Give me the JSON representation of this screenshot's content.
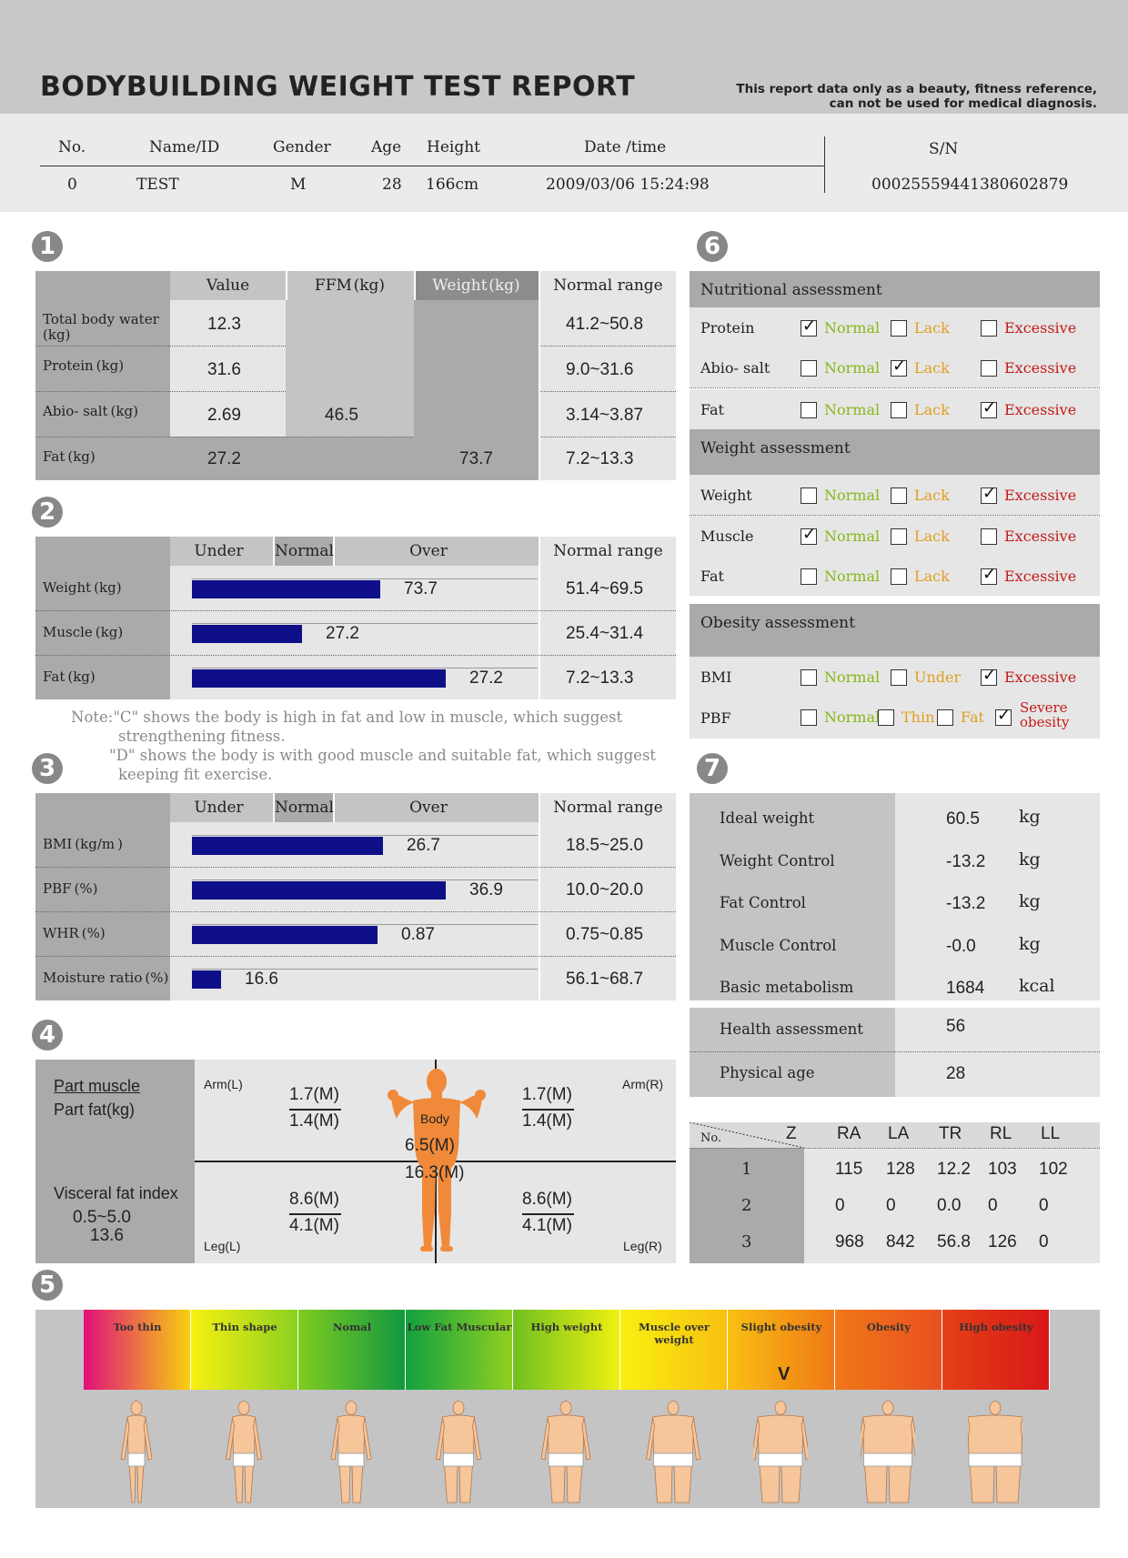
{
  "header": {
    "title": "BODYBUILDING WEIGHT TEST REPORT",
    "disclaimer_line1": "This report data only as a beauty, fitness reference,",
    "disclaimer_line2": "can not be used for medical diagnosis."
  },
  "info": {
    "labels": {
      "no": "No.",
      "name": "Name/ID",
      "gender": "Gender",
      "age": "Age",
      "height": "Height",
      "date": "Date /time",
      "sn": "S/N"
    },
    "values": {
      "no": "0",
      "name": "TEST",
      "gender": "M",
      "age": "28",
      "height": "166cm",
      "date": "2009/03/06 15:24:98",
      "sn": "00025559441380602879"
    }
  },
  "sections": {
    "s1": "1",
    "s2": "2",
    "s3": "3",
    "s4": "4",
    "s5": "5",
    "s6": "6",
    "s7": "7"
  },
  "s1": {
    "headers": {
      "value": "Value",
      "ffm": "FFM (kg)",
      "weight": "Weight (kg)",
      "range": "Normal range"
    },
    "rows": [
      {
        "label": "Total body water\n(kg)",
        "value": "12.3",
        "range": "41.2~50.8"
      },
      {
        "label": "Protein (kg)",
        "value": "31.6",
        "range": "9.0~31.6"
      },
      {
        "label": "Abio- salt (kg)",
        "value": "2.69",
        "range": "3.14~3.87"
      },
      {
        "label": "Fat (kg)",
        "value": "27.2",
        "range": "7.2~13.3"
      }
    ],
    "ffm": "46.5",
    "weight": "73.7"
  },
  "s2": {
    "headers": {
      "under": "Under",
      "normal": "Normal",
      "over": "Over",
      "range": "Normal range"
    },
    "rows": [
      {
        "label": "Weight (kg)",
        "value": "73.7",
        "fill": 0.72,
        "range": "51.4~69.5"
      },
      {
        "label": "Muscle (kg)",
        "value": "27.2",
        "fill": 0.42,
        "range": "25.4~31.4"
      },
      {
        "label": "Fat (kg)",
        "value": "27.2",
        "fill": 0.97,
        "range": "7.2~13.3"
      }
    ]
  },
  "note": {
    "l1": "Note:\"C\" shows the body is high in fat and low in muscle,  which suggest",
    "l2": "strengthening fitness.",
    "l3": "\"D\" shows the body is with good muscle and suitable fat,  which suggest",
    "l4": "keeping fit exercise."
  },
  "s3": {
    "headers": {
      "under": "Under",
      "normal": "Normal",
      "over": "Over",
      "range": "Normal range"
    },
    "rows": [
      {
        "label": "BMI (kg/m )",
        "value": "26.7",
        "fill": 0.73,
        "range": "18.5~25.0"
      },
      {
        "label": "PBF (%)",
        "value": "36.9",
        "fill": 0.97,
        "range": "10.0~20.0"
      },
      {
        "label": "WHR (%)",
        "value": "0.87",
        "fill": 0.71,
        "range": "0.75~0.85"
      },
      {
        "label": "Moisture ratio (%)",
        "value": "16.6",
        "fill": 0.11,
        "range": "56.1~68.7"
      }
    ]
  },
  "s4": {
    "part_muscle": "Part muscle",
    "part_fat": "Part fat(kg)",
    "visceral": "Visceral fat index",
    "visceral_range": "0.5~5.0",
    "visceral_value": "13.6",
    "arm_l": "Arm(L)",
    "arm_r": "Arm(R)",
    "leg_l": "Leg(L)",
    "leg_r": "Leg(R)",
    "body": "Body",
    "arm_l_m": "1.7(M)",
    "arm_l_f": "1.4(M)",
    "arm_r_m": "1.7(M)",
    "arm_r_f": "1.4(M)",
    "body_m": "6.5(M)",
    "body_f": "16.3(M)",
    "leg_l_m": "8.6(M)",
    "leg_l_f": "4.1(M)",
    "leg_r_m": "8.6(M)",
    "leg_r_f": "4.1(M)"
  },
  "s5": {
    "categories": [
      "Too thin",
      "Thin shape",
      "Nomal",
      "Low Fat Muscular",
      "High weight",
      "Muscle over weight",
      "Slight obesity",
      "Obesity",
      "High obesity"
    ],
    "marker": "V",
    "selected_index": 6
  },
  "s6": {
    "nutritional": "Nutritional assessment",
    "weight_title": "Weight assessment",
    "obesity_title": "Obesity assessment",
    "rows": [
      {
        "label": "Protein",
        "o1": "Normal",
        "o2": "Lack",
        "o3": "Excessive",
        "checked": 1
      },
      {
        "label": "Abio- salt",
        "o1": "Normal",
        "o2": "Lack",
        "o3": "Excessive",
        "checked": 2
      },
      {
        "label": "Fat",
        "o1": "Normal",
        "o2": "Lack",
        "o3": "Excessive",
        "checked": 3
      },
      {
        "label": "Weight",
        "o1": "Normal",
        "o2": "Lack",
        "o3": "Excessive",
        "checked": 3
      },
      {
        "label": "Muscle",
        "o1": "Normal",
        "o2": "Lack",
        "o3": "Excessive",
        "checked": 1
      },
      {
        "label": "Fat",
        "o1": "Normal",
        "o2": "Lack",
        "o3": "Excessive",
        "checked": 3
      },
      {
        "label": "BMI",
        "o1": "Normal",
        "o2": "Under",
        "o3": "Excessive",
        "checked": 3
      }
    ],
    "pbf": {
      "label": "PBF",
      "o1": "Normal",
      "o2": "Thin",
      "o3": "Fat",
      "o4a": "Severe",
      "o4b": "obesity",
      "checked": 4
    }
  },
  "s7": {
    "rows": [
      {
        "label": "Ideal weight",
        "value": "60.5",
        "unit": "kg"
      },
      {
        "label": "Weight Control",
        "value": "-13.2",
        "unit": "kg"
      },
      {
        "label": "Fat Control",
        "value": "-13.2",
        "unit": "kg"
      },
      {
        "label": "Muscle Control",
        "value": "-0.0",
        "unit": "kg"
      },
      {
        "label": "Basic metabolism",
        "value": "1684",
        "unit": "kcal"
      }
    ],
    "health_label": "Health assessment",
    "health_value": "56",
    "age_label": "Physical  age",
    "age_value": "28"
  },
  "z": {
    "no": "No.",
    "headers": [
      "Z",
      "RA",
      "LA",
      "TR",
      "RL",
      "LL"
    ],
    "rows": [
      {
        "no": "1",
        "vals": [
          "115",
          "128",
          "12.2",
          "103",
          "102"
        ]
      },
      {
        "no": "2",
        "vals": [
          "0",
          "0",
          "0.0",
          "0",
          "0"
        ]
      },
      {
        "no": "3",
        "vals": [
          "968",
          "842",
          "56.8",
          "126",
          "0"
        ]
      }
    ]
  },
  "colors": {
    "bar": "#0f0f8a",
    "normal": "#88b818",
    "lack": "#e0a020",
    "excessive": "#c41a1a",
    "body": "#f08a3a"
  }
}
